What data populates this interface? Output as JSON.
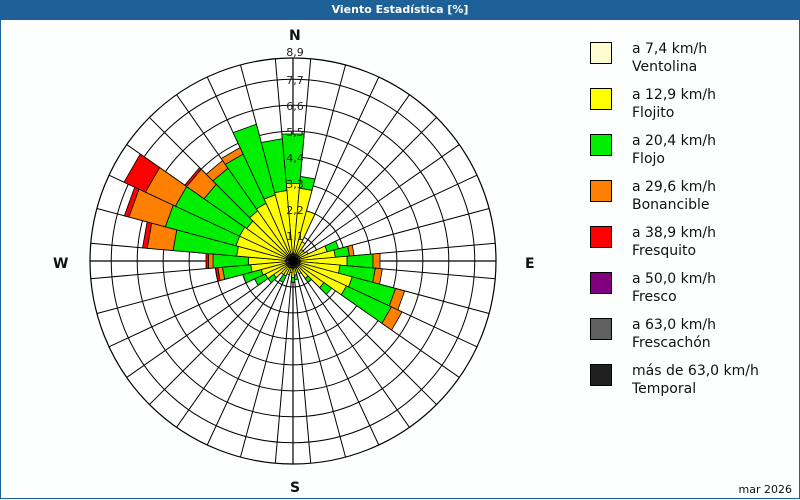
{
  "header": {
    "title": "Viento Estadística [%]"
  },
  "footer": {
    "date": "mar 2026"
  },
  "compass": {
    "N": "N",
    "E": "E",
    "S": "S",
    "W": "W"
  },
  "legend": [
    {
      "range": "a 7,4 km/h",
      "name": "Ventolina",
      "color": "#fffdd0"
    },
    {
      "range": "a 12,9 km/h",
      "name": "Flojito",
      "color": "#ffff00"
    },
    {
      "range": "a 20,4 km/h",
      "name": "Flojo",
      "color": "#00ee00"
    },
    {
      "range": "a 29,6 km/h",
      "name": "Bonancible",
      "color": "#ff8000"
    },
    {
      "range": "a 38,9 km/h",
      "name": "Fresquito",
      "color": "#ff0000"
    },
    {
      "range": "a 50,0 km/h",
      "name": "Fresco",
      "color": "#800080"
    },
    {
      "range": "a 63,0 km/h",
      "name": "Frescachón",
      "color": "#606060"
    },
    {
      "range": "más de 63,0 km/h",
      "name": "Temporal",
      "color": "#202020"
    }
  ],
  "chart_data": {
    "type": "wind-rose",
    "title": "Viento Estadística [%]",
    "radial_ticks": [
      1.1,
      2.2,
      3.3,
      4.4,
      5.5,
      6.6,
      7.7,
      8.9
    ],
    "rmax": 8.9,
    "sector_width_deg": 10,
    "series_names": [
      "Ventolina",
      "Flojito",
      "Flojo",
      "Bonancible",
      "Fresquito",
      "Fresco",
      "Frescachón",
      "Temporal"
    ],
    "sectors": [
      {
        "dir": 0,
        "values": [
          0.3,
          3.0,
          2.1,
          0,
          0,
          0,
          0,
          0
        ]
      },
      {
        "dir": 10,
        "values": [
          0.3,
          2.8,
          0.5,
          0,
          0,
          0,
          0,
          0
        ]
      },
      {
        "dir": 20,
        "values": [
          0.3,
          1.9,
          0,
          0,
          0,
          0,
          0,
          0
        ]
      },
      {
        "dir": 30,
        "values": [
          0.3,
          0.6,
          0,
          0,
          0,
          0,
          0,
          0
        ]
      },
      {
        "dir": 40,
        "values": [
          0.3,
          0.3,
          0,
          0,
          0,
          0,
          0,
          0
        ]
      },
      {
        "dir": 50,
        "values": [
          0.3,
          0.3,
          0,
          0,
          0,
          0,
          0,
          0
        ]
      },
      {
        "dir": 60,
        "values": [
          0.3,
          0.4,
          0,
          0,
          0,
          0,
          0,
          0
        ]
      },
      {
        "dir": 70,
        "values": [
          0.3,
          1.2,
          0.5,
          0,
          0,
          0,
          0,
          0
        ]
      },
      {
        "dir": 80,
        "values": [
          0.3,
          1.5,
          0.6,
          0.2,
          0,
          0,
          0,
          0
        ]
      },
      {
        "dir": 90,
        "values": [
          0.3,
          2.0,
          1.1,
          0.3,
          0,
          0,
          0,
          0
        ]
      },
      {
        "dir": 100,
        "values": [
          0.3,
          1.7,
          1.5,
          0.3,
          0,
          0,
          0,
          0
        ]
      },
      {
        "dir": 110,
        "values": [
          0.3,
          2.3,
          1.9,
          0.4,
          0,
          0,
          0,
          0
        ]
      },
      {
        "dir": 120,
        "values": [
          0.3,
          2.2,
          2.1,
          0.5,
          0,
          0,
          0,
          0
        ]
      },
      {
        "dir": 130,
        "values": [
          0.3,
          1.3,
          0.4,
          0,
          0,
          0,
          0,
          0
        ]
      },
      {
        "dir": 140,
        "values": [
          0.3,
          0.6,
          0.2,
          0,
          0,
          0,
          0,
          0
        ]
      },
      {
        "dir": 150,
        "values": [
          0.3,
          0.3,
          0,
          0,
          0,
          0,
          0,
          0
        ]
      },
      {
        "dir": 160,
        "values": [
          0.3,
          0.2,
          0,
          0,
          0,
          0,
          0,
          0
        ]
      },
      {
        "dir": 170,
        "values": [
          0.3,
          0.3,
          0.2,
          0,
          0,
          0,
          0,
          0
        ]
      },
      {
        "dir": 180,
        "values": [
          0.3,
          0.4,
          0.2,
          0,
          0,
          0,
          0,
          0
        ]
      },
      {
        "dir": 190,
        "values": [
          0.3,
          0.2,
          0,
          0,
          0,
          0,
          0,
          0
        ]
      },
      {
        "dir": 200,
        "values": [
          0.3,
          0.3,
          0,
          0,
          0,
          0,
          0,
          0
        ]
      },
      {
        "dir": 210,
        "values": [
          0.3,
          0.4,
          0.3,
          0,
          0,
          0,
          0,
          0
        ]
      },
      {
        "dir": 220,
        "values": [
          0.3,
          0.4,
          0,
          0,
          0,
          0,
          0,
          0
        ]
      },
      {
        "dir": 230,
        "values": [
          0.3,
          0.7,
          0.3,
          0,
          0,
          0,
          0,
          0
        ]
      },
      {
        "dir": 240,
        "values": [
          0.3,
          1.0,
          0.5,
          0,
          0,
          0,
          0,
          0
        ]
      },
      {
        "dir": 250,
        "values": [
          0.3,
          1.1,
          0.8,
          0,
          0,
          0,
          0,
          0
        ]
      },
      {
        "dir": 260,
        "values": [
          0.3,
          1.5,
          1.2,
          0.2,
          0.1,
          0,
          0,
          0
        ]
      },
      {
        "dir": 270,
        "values": [
          0.3,
          1.6,
          1.5,
          0.2,
          0.1,
          0,
          0,
          0
        ]
      },
      {
        "dir": 280,
        "values": [
          0.3,
          2.1,
          2.7,
          1.1,
          0.2,
          0,
          0,
          0
        ]
      },
      {
        "dir": 290,
        "values": [
          0.3,
          2.2,
          3.1,
          1.6,
          0.2,
          0,
          0,
          0
        ]
      },
      {
        "dir": 300,
        "values": [
          0.3,
          2.2,
          3.0,
          1.4,
          1.0,
          0,
          0,
          0
        ]
      },
      {
        "dir": 310,
        "values": [
          0.3,
          2.1,
          2.2,
          0.9,
          0.1,
          0,
          0,
          0
        ]
      },
      {
        "dir": 320,
        "values": [
          0.3,
          2.3,
          2.2,
          0.4,
          0,
          0,
          0,
          0
        ]
      },
      {
        "dir": 330,
        "values": [
          0.3,
          2.4,
          2.3,
          0.3,
          0,
          0,
          0,
          0
        ]
      },
      {
        "dir": 340,
        "values": [
          0.3,
          2.6,
          3.1,
          0,
          0,
          0,
          0,
          0
        ]
      },
      {
        "dir": 350,
        "values": [
          0.3,
          2.7,
          2.2,
          0,
          0,
          0,
          0,
          0
        ]
      }
    ]
  }
}
